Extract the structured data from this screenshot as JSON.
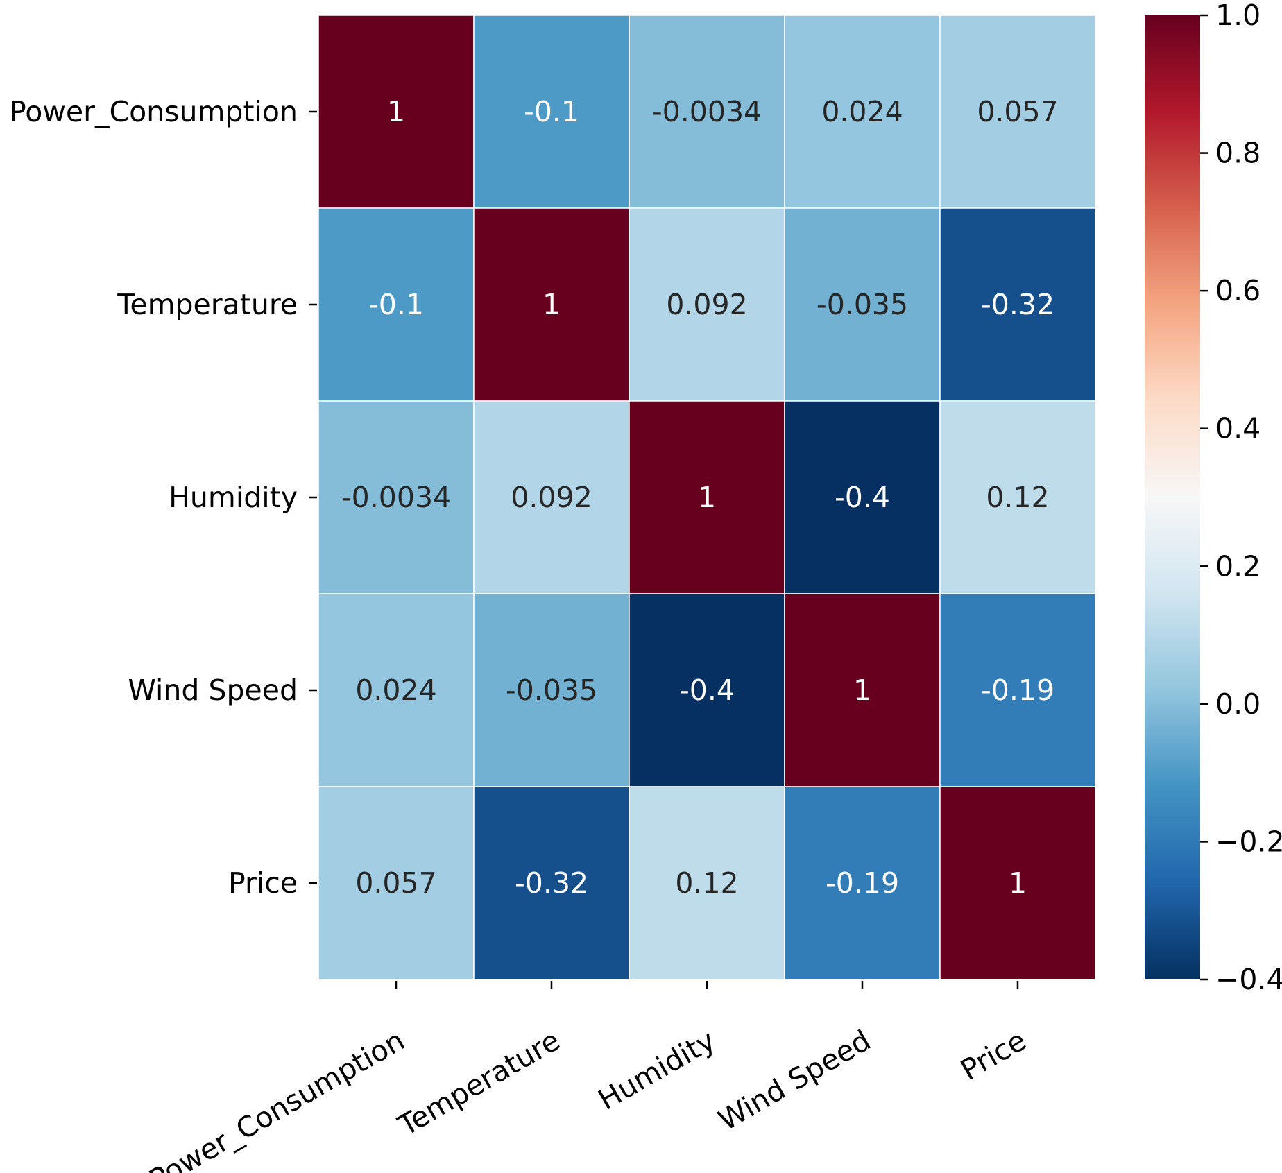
{
  "chart_data": {
    "type": "heatmap",
    "title": "",
    "xlabel": "",
    "ylabel": "",
    "row_labels": [
      "Power_Consumption",
      "Temperature",
      "Humidity",
      "Wind Speed",
      "Price"
    ],
    "col_labels": [
      "Power_Consumption",
      "Temperature",
      "Humidity",
      "Wind Speed",
      "Price"
    ],
    "values": [
      [
        1,
        -0.1,
        -0.0034,
        0.024,
        0.057
      ],
      [
        -0.1,
        1,
        0.092,
        -0.035,
        -0.32
      ],
      [
        -0.0034,
        0.092,
        1,
        -0.4,
        0.12
      ],
      [
        0.024,
        -0.035,
        -0.4,
        1,
        -0.19
      ],
      [
        0.057,
        -0.32,
        0.12,
        -0.19,
        1
      ]
    ],
    "cell_labels": [
      [
        "1",
        "-0.1",
        "-0.0034",
        "0.024",
        "0.057"
      ],
      [
        "-0.1",
        "1",
        "0.092",
        "-0.035",
        "-0.32"
      ],
      [
        "-0.0034",
        "0.092",
        "1",
        "-0.4",
        "0.12"
      ],
      [
        "0.024",
        "-0.035",
        "-0.4",
        "1",
        "-0.19"
      ],
      [
        "0.057",
        "-0.32",
        "0.12",
        "-0.19",
        "1"
      ]
    ],
    "colormap": "RdBu_r",
    "colorbar": {
      "vmin": -0.4,
      "vmax": 1.0,
      "ticks": [
        1.0,
        0.8,
        0.6,
        0.4,
        0.2,
        0.0,
        -0.2,
        -0.4
      ],
      "tick_labels": [
        "1.0",
        "0.8",
        "0.6",
        "0.4",
        "0.2",
        "0.0",
        "−0.2",
        "−0.4"
      ],
      "placement": "right"
    }
  }
}
